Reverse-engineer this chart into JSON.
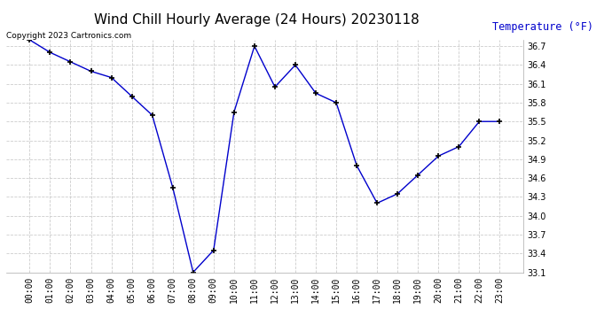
{
  "title": "Wind Chill Hourly Average (24 Hours) 20230118",
  "ylabel": "Temperature (°F)",
  "copyright_text": "Copyright 2023 Cartronics.com",
  "hours": [
    "00:00",
    "01:00",
    "02:00",
    "03:00",
    "04:00",
    "05:00",
    "06:00",
    "07:00",
    "08:00",
    "09:00",
    "10:00",
    "11:00",
    "12:00",
    "13:00",
    "14:00",
    "15:00",
    "16:00",
    "17:00",
    "18:00",
    "19:00",
    "20:00",
    "21:00",
    "22:00",
    "23:00"
  ],
  "values": [
    36.8,
    36.6,
    36.45,
    36.3,
    36.2,
    35.9,
    35.6,
    34.45,
    33.1,
    33.45,
    35.65,
    36.7,
    36.05,
    36.4,
    35.95,
    35.8,
    34.8,
    34.2,
    34.35,
    34.65,
    34.95,
    35.1,
    35.5,
    35.5
  ],
  "line_color": "#0000cc",
  "marker": "+",
  "marker_color": "#000000",
  "grid_color": "#cccccc",
  "bg_color": "#ffffff",
  "title_color": "#000000",
  "ylabel_color": "#0000cc",
  "copyright_color": "#000000",
  "ylim_min": 33.1,
  "ylim_max": 36.8,
  "ytick_step": 0.3,
  "title_fontsize": 11,
  "label_fontsize": 8.5,
  "tick_fontsize": 7,
  "copyright_fontsize": 6.5
}
